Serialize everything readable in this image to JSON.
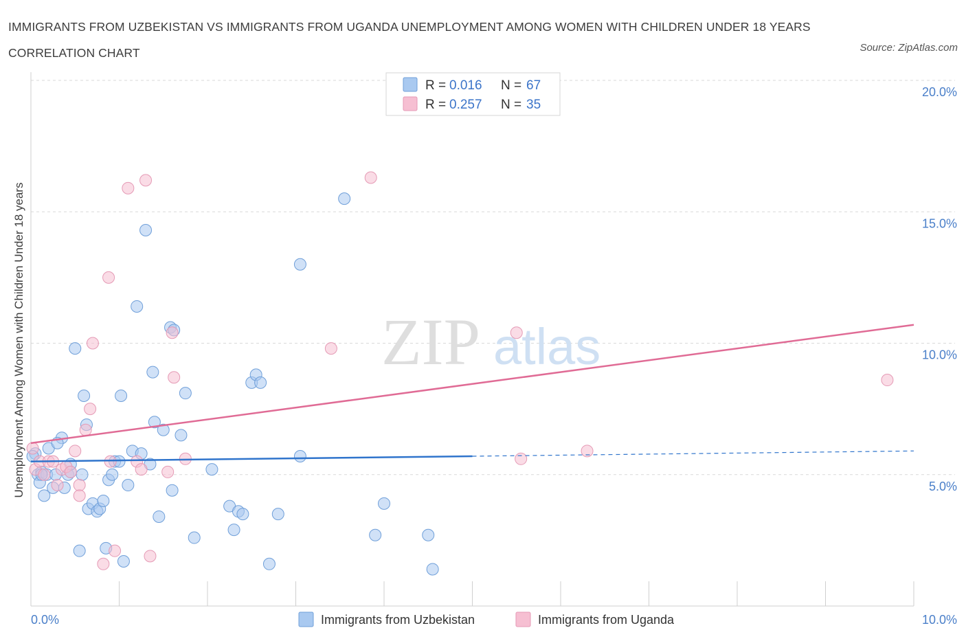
{
  "header": {
    "title": "IMMIGRANTS FROM UZBEKISTAN VS IMMIGRANTS FROM UGANDA UNEMPLOYMENT AMONG WOMEN WITH CHILDREN UNDER 18 YEARS CORRELATION CHART",
    "source": "Source: ZipAtlas.com"
  },
  "watermark": {
    "zip": "ZIP",
    "atlas": "atlas"
  },
  "legend": {
    "uzbekistan": {
      "r_label": "R =",
      "r_value": "0.016",
      "n_label": "N =",
      "n_value": "67"
    },
    "uganda": {
      "r_label": "R =",
      "r_value": "0.257",
      "n_label": "N =",
      "n_value": "35"
    }
  },
  "colors": {
    "uzbekistan_fill": "#a9c9f0",
    "uzbekistan_stroke": "#6f9fd9",
    "uzbekistan_line": "#2f74cc",
    "uganda_fill": "#f6bfd2",
    "uganda_stroke": "#e59ab5",
    "uganda_line": "#e06b95",
    "tick": "#4a7fc9",
    "grid": "#d9d9d9"
  },
  "chart_data": {
    "type": "scatter",
    "ylabel": "Unemployment Among Women with Children Under 18 years",
    "xlim": [
      0,
      10
    ],
    "ylim": [
      0,
      20
    ],
    "y_ticks": [
      5,
      10,
      15,
      20
    ],
    "y_tick_labels": [
      "5.0%",
      "10.0%",
      "15.0%",
      "20.0%"
    ],
    "x_tick_labels": [
      "0.0%",
      "10.0%"
    ],
    "grid": "horizontal dashed",
    "legend_position": "top-center",
    "series": [
      {
        "name": "Immigrants from Uzbekistan",
        "trend": {
          "x": [
            0,
            5.0,
            10.0
          ],
          "y": [
            5.5,
            5.7,
            5.9
          ],
          "solid_until": 5.0
        },
        "points": [
          [
            0.05,
            5.8
          ],
          [
            0.08,
            5.0
          ],
          [
            0.1,
            4.7
          ],
          [
            0.12,
            5.1
          ],
          [
            0.15,
            4.2
          ],
          [
            0.18,
            5.0
          ],
          [
            0.2,
            6.0
          ],
          [
            0.25,
            4.5
          ],
          [
            0.28,
            5.0
          ],
          [
            0.35,
            6.4
          ],
          [
            0.38,
            4.5
          ],
          [
            0.42,
            5.0
          ],
          [
            0.45,
            5.1
          ],
          [
            0.5,
            9.8
          ],
          [
            0.55,
            2.1
          ],
          [
            0.58,
            5.0
          ],
          [
            0.6,
            8.0
          ],
          [
            0.63,
            6.9
          ],
          [
            0.65,
            3.7
          ],
          [
            0.7,
            3.9
          ],
          [
            0.75,
            3.6
          ],
          [
            0.78,
            3.7
          ],
          [
            0.82,
            4.0
          ],
          [
            0.85,
            2.2
          ],
          [
            0.88,
            4.8
          ],
          [
            0.92,
            5.0
          ],
          [
            0.95,
            5.5
          ],
          [
            1.0,
            5.5
          ],
          [
            1.02,
            8.0
          ],
          [
            1.05,
            1.7
          ],
          [
            1.1,
            4.6
          ],
          [
            1.15,
            5.9
          ],
          [
            1.2,
            11.4
          ],
          [
            1.25,
            5.8
          ],
          [
            1.3,
            14.3
          ],
          [
            1.35,
            5.4
          ],
          [
            1.38,
            8.9
          ],
          [
            1.4,
            7.0
          ],
          [
            1.45,
            3.4
          ],
          [
            1.5,
            6.7
          ],
          [
            1.58,
            10.6
          ],
          [
            1.6,
            4.4
          ],
          [
            1.62,
            10.5
          ],
          [
            1.7,
            6.5
          ],
          [
            1.75,
            8.1
          ],
          [
            1.85,
            2.6
          ],
          [
            2.05,
            5.2
          ],
          [
            2.25,
            3.8
          ],
          [
            2.3,
            2.9
          ],
          [
            2.35,
            3.6
          ],
          [
            2.4,
            3.5
          ],
          [
            2.5,
            8.5
          ],
          [
            2.55,
            8.8
          ],
          [
            2.6,
            8.5
          ],
          [
            2.7,
            1.6
          ],
          [
            2.8,
            3.5
          ],
          [
            3.05,
            13.0
          ],
          [
            3.05,
            5.7
          ],
          [
            3.55,
            15.5
          ],
          [
            3.9,
            2.7
          ],
          [
            4.0,
            3.9
          ],
          [
            4.5,
            2.7
          ],
          [
            4.55,
            1.4
          ],
          [
            0.3,
            6.2
          ],
          [
            0.45,
            5.4
          ],
          [
            0.12,
            5.0
          ],
          [
            0.02,
            5.7
          ]
        ]
      },
      {
        "name": "Immigrants from Uganda",
        "trend": {
          "x": [
            0,
            10.0
          ],
          "y": [
            6.2,
            10.7
          ]
        },
        "points": [
          [
            0.02,
            6.0
          ],
          [
            0.05,
            5.2
          ],
          [
            0.1,
            5.5
          ],
          [
            0.15,
            5.0
          ],
          [
            0.2,
            5.5
          ],
          [
            0.25,
            5.5
          ],
          [
            0.3,
            4.6
          ],
          [
            0.35,
            5.2
          ],
          [
            0.4,
            5.3
          ],
          [
            0.45,
            5.1
          ],
          [
            0.55,
            4.6
          ],
          [
            0.5,
            5.9
          ],
          [
            0.55,
            4.2
          ],
          [
            0.62,
            6.7
          ],
          [
            0.67,
            7.5
          ],
          [
            0.7,
            10.0
          ],
          [
            0.82,
            1.6
          ],
          [
            0.88,
            12.5
          ],
          [
            0.9,
            5.5
          ],
          [
            0.95,
            2.1
          ],
          [
            1.1,
            15.9
          ],
          [
            1.2,
            5.5
          ],
          [
            1.25,
            5.2
          ],
          [
            1.3,
            16.2
          ],
          [
            1.35,
            1.9
          ],
          [
            1.55,
            5.1
          ],
          [
            1.6,
            10.4
          ],
          [
            1.62,
            8.7
          ],
          [
            1.75,
            5.6
          ],
          [
            3.4,
            9.8
          ],
          [
            3.85,
            16.3
          ],
          [
            5.5,
            10.4
          ],
          [
            5.55,
            5.6
          ],
          [
            6.3,
            5.9
          ],
          [
            9.7,
            8.6
          ]
        ]
      }
    ]
  },
  "bottom_legend": {
    "uzbekistan_label": "Immigrants from Uzbekistan",
    "uganda_label": "Immigrants from Uganda"
  }
}
